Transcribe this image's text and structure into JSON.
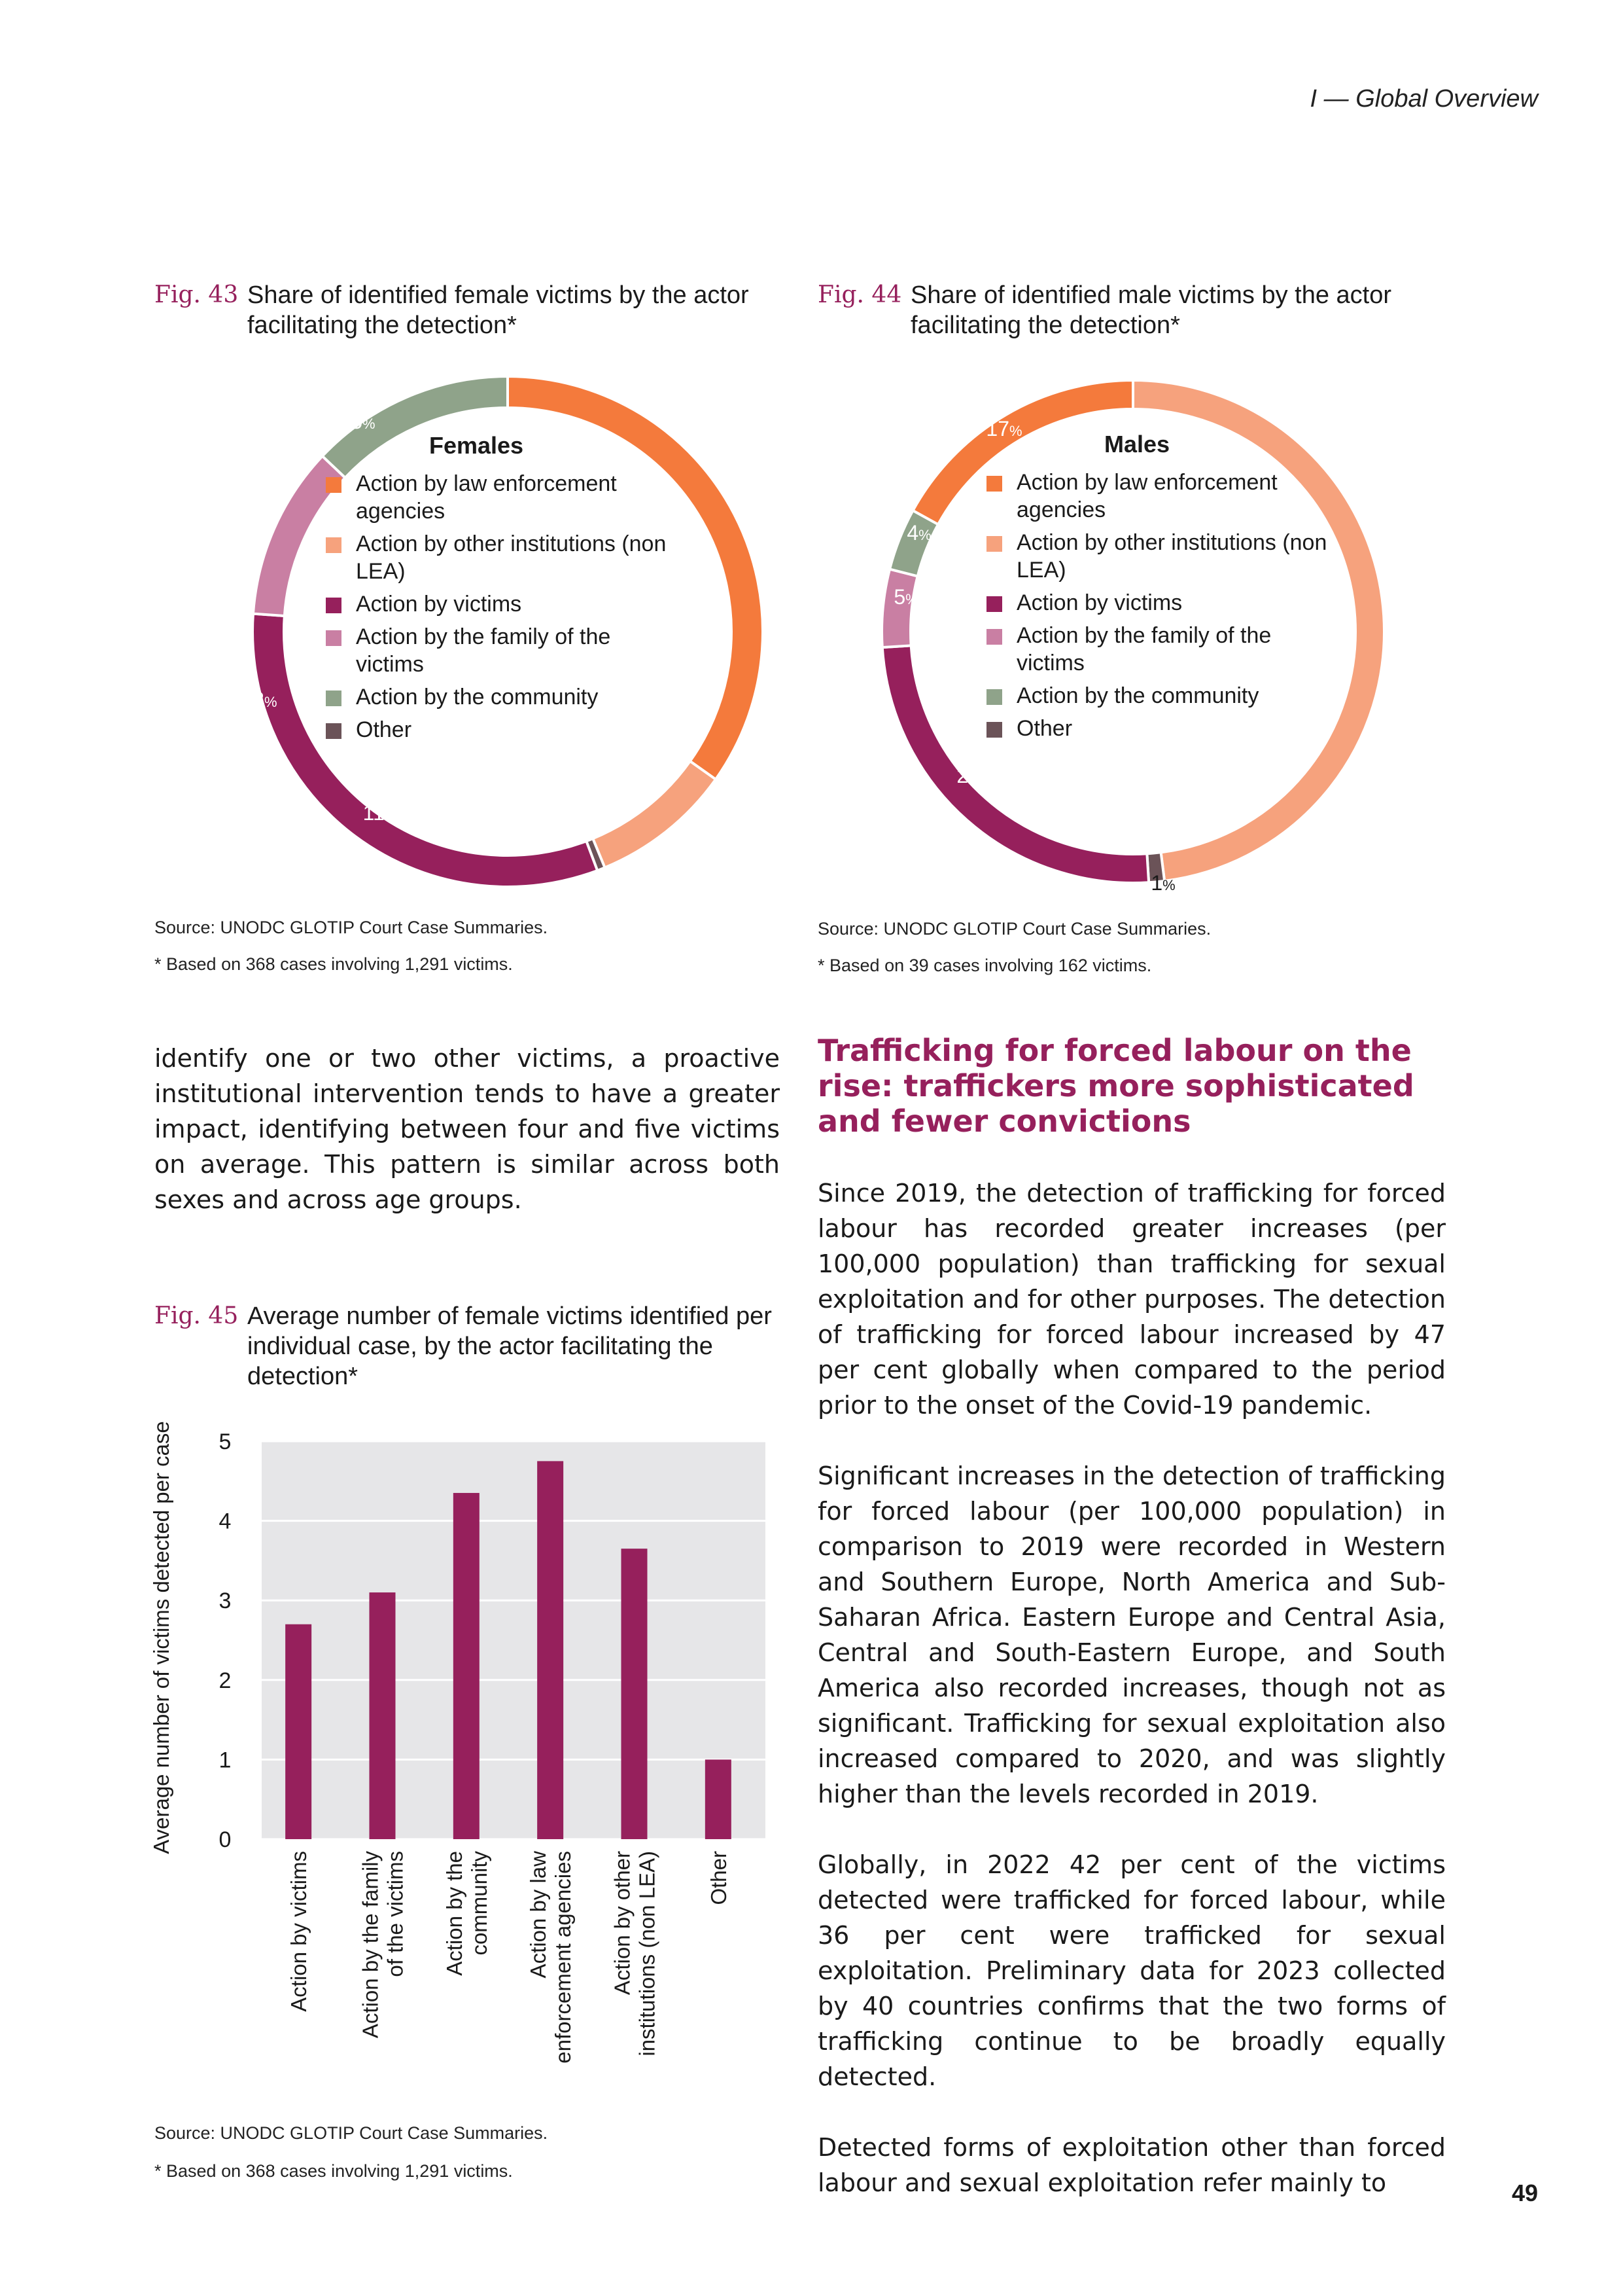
{
  "header": {
    "running_title": "I — Global Overview"
  },
  "fig43": {
    "number": "Fig. 43",
    "title": "Share of identified female victims by the actor facilitating the detection*",
    "source": "Source: UNODC GLOTIP Court Case Summaries.",
    "note": "* Based on 368 cases involving 1,291 victims.",
    "chart_data": {
      "type": "pie",
      "title": "Females",
      "categories": [
        "Action by law enforcement agencies",
        "Action by other institutions (non LEA)",
        "Action by victims",
        "Action by the family of the victims",
        "Action by the community",
        "Other"
      ],
      "values": [
        35,
        9,
        32,
        11,
        13,
        0.5
      ],
      "value_labels": [
        "35",
        "9",
        "32",
        "11",
        "13",
        ""
      ],
      "unit": "%",
      "colors": [
        "#f47a3c",
        "#f6a27d",
        "#96205c",
        "#c97fa3",
        "#8fa38a",
        "#6b5358"
      ]
    }
  },
  "fig44": {
    "number": "Fig. 44",
    "title": "Share of identified male victims by the actor facilitating the detection*",
    "source": "Source: UNODC GLOTIP Court Case Summaries.",
    "note": "* Based on 39 cases involving 162 victims.",
    "chart_data": {
      "type": "pie",
      "title": "Males",
      "categories": [
        "Action by law enforcement agencies",
        "Action by other institutions (non LEA)",
        "Action by victims",
        "Action by the family of the victims",
        "Action by the community",
        "Other"
      ],
      "values": [
        17,
        48,
        25,
        5,
        4,
        1
      ],
      "value_labels": [
        "17",
        "48",
        "25",
        "5",
        "4",
        "1"
      ],
      "unit": "%",
      "colors": [
        "#f47a3c",
        "#f6a27d",
        "#96205c",
        "#c97fa3",
        "#8fa38a",
        "#6b5358"
      ]
    }
  },
  "fig45": {
    "number": "Fig. 45",
    "title": "Average number of female victims identified per individual case, by the actor facilitating the detection*",
    "source": "Source: UNODC GLOTIP Court Case Summaries.",
    "note": "* Based on 368 cases involving 1,291 victims.",
    "chart_data": {
      "type": "bar",
      "categories": [
        "Action by victims",
        "Action by the family of the victims",
        "Action by the community",
        "Action by law enforcement agencies",
        "Action by other institutions (non LEA)",
        "Other"
      ],
      "category_label_lines": [
        [
          "Action by victims"
        ],
        [
          "Action by the family",
          "of the victims"
        ],
        [
          "Action by the",
          "community"
        ],
        [
          "Action by law",
          "enforcement agencies"
        ],
        [
          "Action by other",
          "institutions (non LEA)"
        ],
        [
          "Other"
        ]
      ],
      "values": [
        2.7,
        3.1,
        4.35,
        4.75,
        3.65,
        1.0
      ],
      "ylabel": "Average number of victims detected per case",
      "ylim": [
        0,
        5
      ],
      "yticks": [
        "0",
        "1",
        "2",
        "3",
        "4",
        "5"
      ],
      "grid": true,
      "bar_color": "#96205c",
      "plot_background": "#e6e6e8"
    }
  },
  "left_column": {
    "paragraph": "identify one or two other victims, a proactive institutional intervention tends to have a greater impact, identifying between four and five victims on average. This pattern is similar across both sexes and across age groups."
  },
  "right_column": {
    "heading": "Trafficking for forced labour on the rise: traffickers more sophisticated and fewer convictions",
    "paragraphs": [
      "Since 2019, the detection of trafficking for forced labour has recorded greater increases (per 100,000 population) than trafficking for sexual exploitation and for other purposes. The detection of trafficking for forced labour increased by 47 per cent globally when compared to the period prior to the onset of the Covid-19 pandemic.",
      "Significant increases in the detection of trafficking for forced labour (per 100,000 population) in comparison to 2019 were recorded in Western and Southern Europe, North America and Sub-Saharan Africa. Eastern Europe and Central Asia, Central and South-Eastern Europe, and South America also recorded increases, though not as significant. Trafficking for sexual exploitation also increased compared to 2020, and was slightly higher than the levels recorded in 2019.",
      "Globally, in 2022 42 per cent of the victims detected were trafficked for forced labour, while 36 per cent were trafficked for sexual exploitation. Preliminary data for 2023 collected by 40 countries confirms that the two forms of trafficking continue to be broadly equally detected.",
      "Detected forms of exploitation other than forced labour and sexual exploitation refer mainly to"
    ]
  },
  "page_number": "49"
}
